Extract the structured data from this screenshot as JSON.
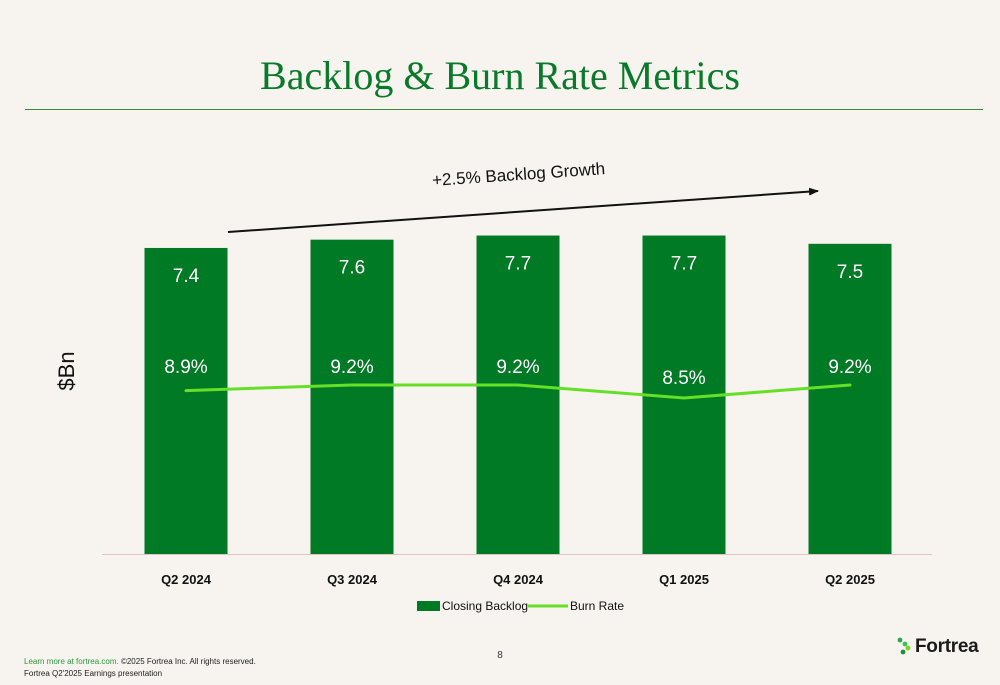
{
  "page": {
    "title": "Backlog & Burn Rate Metrics",
    "page_number": "8",
    "footer_link": "Learn more at fortrea.com.",
    "footer_copyright": "©2025 Fortrea Inc. All rights reserved.",
    "footer_line2": "Fortrea Q2'2025 Earnings presentation",
    "brand": "Fortrea",
    "colors": {
      "bar": "#007a25",
      "line": "#66e026",
      "title": "#0a7a2a",
      "accent": "#2a9a3a"
    }
  },
  "chart_data": {
    "type": "bar",
    "categories": [
      "Q2 2024",
      "Q3 2024",
      "Q4 2024",
      "Q1 2025",
      "Q2 2025"
    ],
    "ylabel": "$Bn",
    "annotation": "+2.5% Backlog Growth",
    "legend_position": "bottom",
    "grid": false,
    "ylim": [
      0,
      8.1
    ],
    "series": [
      {
        "name": "Closing Backlog",
        "type": "bar",
        "values": [
          7.4,
          7.6,
          7.7,
          7.7,
          7.5
        ],
        "labels": [
          "7.4",
          "7.6",
          "7.7",
          "7.7",
          "7.5"
        ]
      },
      {
        "name": "Burn Rate",
        "type": "line",
        "values": [
          8.9,
          9.2,
          9.2,
          8.5,
          9.2
        ],
        "labels": [
          "8.9%",
          "9.2%",
          "9.2%",
          "8.5%",
          "9.2%"
        ],
        "unit": "%"
      }
    ]
  }
}
